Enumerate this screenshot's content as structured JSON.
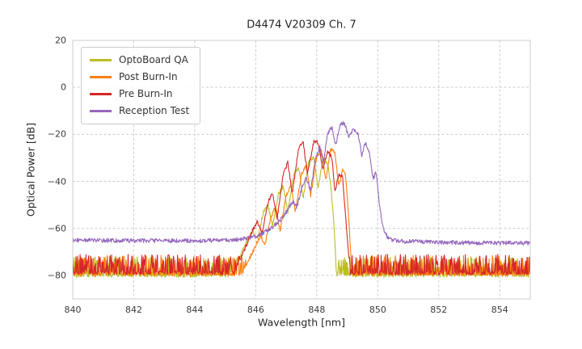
{
  "chart_data": {
    "type": "line",
    "title": "D4474 V20309 Ch. 7",
    "xlabel": "Wavelength [nm]",
    "ylabel": "Optical Power [dB]",
    "xlim": [
      840,
      855
    ],
    "ylim": [
      -90,
      20
    ],
    "xticks": [
      840,
      842,
      844,
      846,
      848,
      850,
      852,
      854
    ],
    "yticks": [
      20,
      0,
      -20,
      -40,
      -60,
      -80
    ],
    "grid": true,
    "grid_color": "#cccccc",
    "frame_color": "#cccccc",
    "background_color": "#ffffff",
    "legend_position": "upper-left",
    "sample_step_nm": 0.015,
    "series": [
      {
        "name": "OptoBoard QA",
        "color": "#bcbd22",
        "noise_floor": -80,
        "noise_amp": 8,
        "signal_noise": 0.8,
        "seed": 101,
        "envelope": [
          [
            840,
            -80
          ],
          [
            845.1,
            -80
          ],
          [
            845.45,
            -73
          ],
          [
            845.7,
            -66
          ],
          [
            845.9,
            -61
          ],
          [
            846.05,
            -65
          ],
          [
            846.25,
            -53
          ],
          [
            846.4,
            -50
          ],
          [
            846.55,
            -59
          ],
          [
            846.75,
            -45
          ],
          [
            846.9,
            -42
          ],
          [
            847.05,
            -53
          ],
          [
            847.25,
            -37
          ],
          [
            847.4,
            -34
          ],
          [
            847.55,
            -47
          ],
          [
            847.75,
            -31
          ],
          [
            847.9,
            -30
          ],
          [
            848.05,
            -43
          ],
          [
            848.2,
            -30
          ],
          [
            848.35,
            -32
          ],
          [
            848.45,
            -41
          ],
          [
            848.55,
            -55
          ],
          [
            848.65,
            -80
          ],
          [
            855,
            -80
          ]
        ]
      },
      {
        "name": "Post Burn-In",
        "color": "#ff7f0e",
        "noise_floor": -79.5,
        "noise_amp": 8,
        "signal_noise": 0.8,
        "seed": 202,
        "envelope": [
          [
            840,
            -79.5
          ],
          [
            845.55,
            -79.5
          ],
          [
            845.9,
            -70
          ],
          [
            846.15,
            -63
          ],
          [
            846.3,
            -67
          ],
          [
            846.5,
            -55
          ],
          [
            846.65,
            -51
          ],
          [
            846.8,
            -61
          ],
          [
            847.0,
            -46
          ],
          [
            847.15,
            -42
          ],
          [
            847.3,
            -53
          ],
          [
            847.5,
            -37
          ],
          [
            847.65,
            -33
          ],
          [
            847.8,
            -46
          ],
          [
            848.0,
            -29
          ],
          [
            848.15,
            -27
          ],
          [
            848.3,
            -39
          ],
          [
            848.45,
            -26
          ],
          [
            848.6,
            -28
          ],
          [
            848.72,
            -42
          ],
          [
            848.85,
            -35
          ],
          [
            848.95,
            -38
          ],
          [
            849.05,
            -56
          ],
          [
            849.15,
            -79.5
          ],
          [
            855,
            -79.5
          ]
        ]
      },
      {
        "name": "Pre Burn-In",
        "color": "#d62728",
        "noise_floor": -79,
        "noise_amp": 8,
        "signal_noise": 0.8,
        "seed": 303,
        "envelope": [
          [
            840,
            -79
          ],
          [
            845.3,
            -79
          ],
          [
            845.6,
            -70
          ],
          [
            845.85,
            -62
          ],
          [
            846.05,
            -57
          ],
          [
            846.2,
            -62
          ],
          [
            846.4,
            -49
          ],
          [
            846.55,
            -45
          ],
          [
            846.7,
            -56
          ],
          [
            846.9,
            -37
          ],
          [
            847.05,
            -32
          ],
          [
            847.2,
            -45
          ],
          [
            847.4,
            -26
          ],
          [
            847.55,
            -23
          ],
          [
            847.7,
            -37
          ],
          [
            847.9,
            -23
          ],
          [
            848.05,
            -23.5
          ],
          [
            848.2,
            -35
          ],
          [
            848.35,
            -27
          ],
          [
            848.5,
            -30
          ],
          [
            848.6,
            -45
          ],
          [
            848.72,
            -37
          ],
          [
            848.85,
            -38
          ],
          [
            848.95,
            -56
          ],
          [
            849.1,
            -79
          ],
          [
            855,
            -79
          ]
        ]
      },
      {
        "name": "Reception Test",
        "color": "#9467bd",
        "noise_floor": null,
        "noise_amp": 0.9,
        "signal_noise": 0.9,
        "seed": 404,
        "envelope": [
          [
            840,
            -65
          ],
          [
            842,
            -65.2
          ],
          [
            844,
            -65.3
          ],
          [
            845.2,
            -65
          ],
          [
            845.8,
            -64
          ],
          [
            846.2,
            -62.5
          ],
          [
            846.5,
            -60
          ],
          [
            846.8,
            -56.5
          ],
          [
            847.0,
            -53
          ],
          [
            847.2,
            -48.5
          ],
          [
            847.35,
            -51
          ],
          [
            847.5,
            -43
          ],
          [
            847.65,
            -38
          ],
          [
            847.8,
            -44
          ],
          [
            847.95,
            -31
          ],
          [
            848.1,
            -25
          ],
          [
            848.22,
            -32
          ],
          [
            848.36,
            -19.5
          ],
          [
            848.5,
            -17
          ],
          [
            848.62,
            -25
          ],
          [
            848.76,
            -15.8
          ],
          [
            848.9,
            -15.2
          ],
          [
            849.05,
            -21
          ],
          [
            849.2,
            -17.5
          ],
          [
            849.35,
            -19.5
          ],
          [
            849.48,
            -29
          ],
          [
            849.6,
            -23.5
          ],
          [
            849.72,
            -27
          ],
          [
            849.85,
            -39
          ],
          [
            849.95,
            -36
          ],
          [
            850.05,
            -50
          ],
          [
            850.18,
            -60
          ],
          [
            850.35,
            -64.5
          ],
          [
            850.8,
            -65.5
          ],
          [
            852.5,
            -66
          ],
          [
            855,
            -66.3
          ]
        ]
      }
    ]
  }
}
